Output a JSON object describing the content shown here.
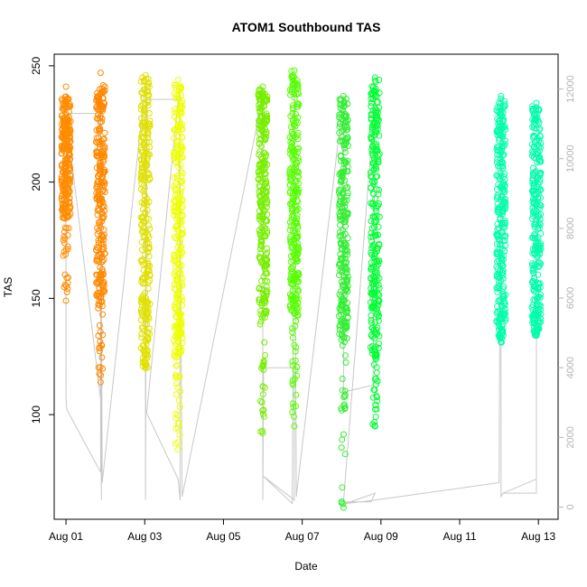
{
  "chart_data": {
    "type": "scatter",
    "title": "ATOM1 Southbound TAS",
    "xlabel": "Date",
    "ylabel": "TAS",
    "x_tick_labels": [
      "Aug 01",
      "Aug 03",
      "Aug 05",
      "Aug 07",
      "Aug 09",
      "Aug 11",
      "Aug 13"
    ],
    "x_tick_days": [
      1,
      3,
      5,
      7,
      9,
      11,
      13
    ],
    "xlim": [
      0.7,
      13.5
    ],
    "ylim": [
      55,
      255
    ],
    "y_ticks": [
      100,
      150,
      200,
      250
    ],
    "y2_ticks": [
      0,
      2000,
      4000,
      6000,
      8000,
      10000,
      12000
    ],
    "y2lim": [
      -350,
      13000
    ],
    "y2_color": "#b3b3b3",
    "grid": false,
    "series": [
      {
        "day": 1.0,
        "color": "#ff8c00",
        "tas_min": 149,
        "tas_max": 241,
        "dense_min": 184,
        "dense_max": 237
      },
      {
        "day": 1.88,
        "color": "#ff8800",
        "tas_min": 114,
        "tas_max": 247,
        "dense_min": 150,
        "dense_max": 242
      },
      {
        "day": 3.02,
        "color": "#e0e000",
        "tas_min": 120,
        "tas_max": 246,
        "dense_min": 128,
        "dense_max": 245
      },
      {
        "day": 3.85,
        "color": "#eeff00",
        "tas_min": 85,
        "tas_max": 244,
        "dense_min": 125,
        "dense_max": 243
      },
      {
        "day": 6.0,
        "color": "#77ee00",
        "tas_min": 92,
        "tas_max": 241,
        "dense_min": 141,
        "dense_max": 240
      },
      {
        "day": 6.8,
        "color": "#55ff00",
        "tas_min": 95,
        "tas_max": 248,
        "dense_min": 140,
        "dense_max": 248
      },
      {
        "day": 8.05,
        "color": "#33ee33",
        "tas_min": 60,
        "tas_max": 237,
        "dense_min": 132,
        "dense_max": 236
      },
      {
        "day": 8.85,
        "color": "#00ff33",
        "tas_min": 95,
        "tas_max": 245,
        "dense_min": 125,
        "dense_max": 244
      },
      {
        "day": 12.05,
        "color": "#00ffaa",
        "tas_min": 131,
        "tas_max": 237,
        "dense_min": 138,
        "dense_max": 236
      },
      {
        "day": 12.95,
        "color": "#00ffaa",
        "tas_min": 134,
        "tas_max": 234,
        "dense_min": 139,
        "dense_max": 233
      }
    ],
    "altitude_trace": {
      "color": "#c8c8c8",
      "axis": "y2",
      "points": [
        [
          1.0,
          11300
        ],
        [
          1.0,
          3100
        ],
        [
          1.02,
          2800
        ],
        [
          1.88,
          1000
        ],
        [
          1.88,
          11300
        ],
        [
          1.0,
          11300
        ],
        [
          1.88,
          3100
        ],
        [
          1.9,
          200
        ],
        [
          1.88,
          11900
        ],
        [
          1.92,
          700
        ],
        [
          3.02,
          12200
        ],
        [
          3.02,
          200
        ],
        [
          3.05,
          11700
        ],
        [
          3.45,
          11700
        ],
        [
          3.85,
          11700
        ],
        [
          3.05,
          2700
        ],
        [
          3.85,
          800
        ],
        [
          3.9,
          200
        ],
        [
          3.88,
          12000
        ],
        [
          3.95,
          300
        ],
        [
          6.0,
          11800
        ],
        [
          6.0,
          200
        ],
        [
          6.02,
          4000
        ],
        [
          6.8,
          4000
        ],
        [
          6.8,
          200
        ],
        [
          6.0,
          900
        ],
        [
          6.75,
          100
        ],
        [
          6.8,
          12400
        ],
        [
          6.85,
          300
        ],
        [
          8.05,
          11800
        ],
        [
          8.05,
          3300
        ],
        [
          8.8,
          3500
        ],
        [
          8.85,
          11800
        ],
        [
          8.05,
          150
        ],
        [
          8.75,
          150
        ],
        [
          8.85,
          400
        ],
        [
          8.1,
          100
        ],
        [
          8.85,
          200
        ],
        [
          12.0,
          700
        ],
        [
          12.05,
          11800
        ],
        [
          12.05,
          300
        ],
        [
          12.1,
          400
        ],
        [
          12.95,
          800
        ],
        [
          12.95,
          11500
        ],
        [
          12.95,
          400
        ],
        [
          12.1,
          400
        ]
      ]
    }
  }
}
